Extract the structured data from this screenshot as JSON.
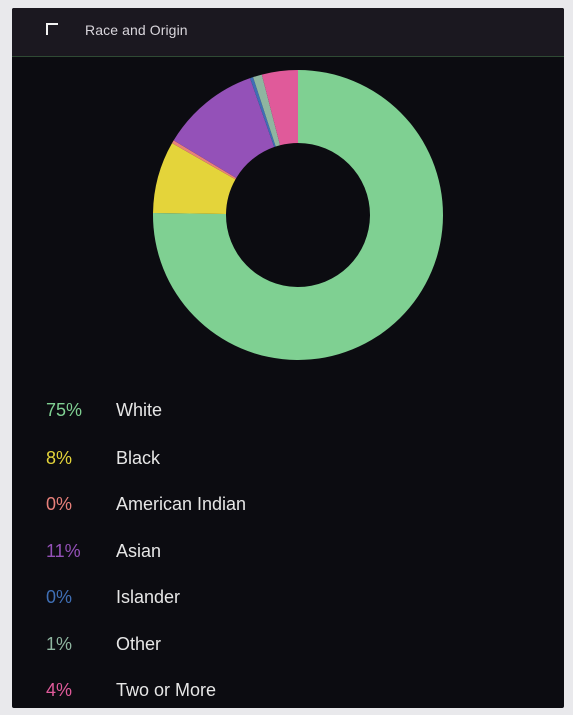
{
  "header": {
    "title": "Race and Origin"
  },
  "chart_data": {
    "type": "pie",
    "donut": true,
    "categories": [
      "White",
      "Black",
      "American Indian",
      "Asian",
      "Islander",
      "Other",
      "Two or More"
    ],
    "values": [
      75,
      8,
      0,
      11,
      0,
      1,
      4
    ],
    "percent_labels": [
      "75%",
      "8%",
      "0%",
      "11%",
      "0%",
      "1%",
      "4%"
    ],
    "colors": [
      "#7fd092",
      "#e4d43a",
      "#e8807a",
      "#9451b8",
      "#3f6fb5",
      "#8fb6a0",
      "#e05a9a"
    ],
    "legend_position": "bottom"
  }
}
